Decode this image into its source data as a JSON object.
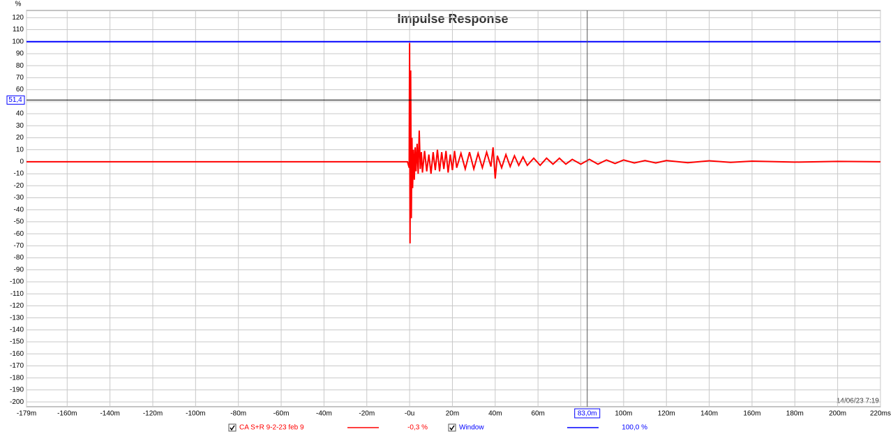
{
  "chart_data": {
    "type": "line",
    "title": "Impulse Response",
    "y_unit": "%",
    "timestamp": "14/06/23 7:19",
    "xlim": [
      -179,
      220
    ],
    "ylim": [
      -204,
      126
    ],
    "grid": true,
    "xticks": [
      {
        "value": -179,
        "label": "-179m"
      },
      {
        "value": -160,
        "label": "-160m"
      },
      {
        "value": -140,
        "label": "-140m"
      },
      {
        "value": -120,
        "label": "-120m"
      },
      {
        "value": -100,
        "label": "-100m"
      },
      {
        "value": -80,
        "label": "-80m"
      },
      {
        "value": -60,
        "label": "-60m"
      },
      {
        "value": -40,
        "label": "-40m"
      },
      {
        "value": -20,
        "label": "-20m"
      },
      {
        "value": 0,
        "label": "-0u"
      },
      {
        "value": 20,
        "label": "20m"
      },
      {
        "value": 40,
        "label": "40m"
      },
      {
        "value": 60,
        "label": "60m"
      },
      {
        "value": 80,
        "label": "80m"
      },
      {
        "value": 100,
        "label": "100m"
      },
      {
        "value": 120,
        "label": "120m"
      },
      {
        "value": 140,
        "label": "140m"
      },
      {
        "value": 160,
        "label": "160m"
      },
      {
        "value": 180,
        "label": "180m"
      },
      {
        "value": 200,
        "label": "200m"
      },
      {
        "value": 220,
        "label": "220ms"
      }
    ],
    "yticks": [
      120,
      110,
      100,
      90,
      80,
      70,
      60,
      50,
      40,
      30,
      20,
      10,
      0,
      -10,
      -20,
      -30,
      -40,
      -50,
      -60,
      -70,
      -80,
      -90,
      -100,
      -110,
      -120,
      -130,
      -140,
      -150,
      -160,
      -170,
      -180,
      -190,
      -200
    ],
    "cursor_y": {
      "value": 51.4,
      "label": "51,4"
    },
    "cursor_x": {
      "value": 83.0,
      "label": "83,0m"
    },
    "series": [
      {
        "name": "CA S+R 9-2-23 feb 9",
        "color": "#ff0000",
        "readout": {
          "value": -0.3,
          "label": "-0,3 %"
        },
        "x": [
          -179,
          -1,
          -0.2,
          0,
          0.2,
          0.5,
          0.8,
          1.1,
          1.4,
          1.8,
          2.2,
          2.6,
          3,
          3.5,
          4,
          4.5,
          5,
          5.5,
          6,
          7,
          8,
          9,
          10,
          11,
          12,
          13,
          14,
          15,
          16,
          17,
          18,
          19,
          20,
          21,
          22,
          24,
          26,
          28,
          30,
          32,
          34,
          36,
          38,
          39,
          40,
          41,
          43,
          45,
          47,
          49,
          51,
          53,
          55,
          58,
          61,
          64,
          67,
          70,
          73,
          76,
          80,
          84,
          88,
          92,
          96,
          100,
          105,
          110,
          115,
          120,
          130,
          140,
          150,
          160,
          180,
          200,
          220
        ],
        "values": [
          0,
          0,
          -5,
          99,
          -68,
          76,
          -47,
          20,
          -22,
          10,
          -15,
          12,
          -8,
          15,
          -10,
          26,
          -6,
          8,
          -9,
          9,
          -8,
          6,
          -10,
          8,
          -7,
          10,
          -8,
          8,
          -6,
          9,
          -9,
          6,
          -7,
          9,
          -5,
          7,
          -6,
          8,
          -6,
          7,
          -5,
          8,
          -4,
          12,
          -14,
          5,
          -5,
          6,
          -4,
          5,
          -3,
          4,
          -3,
          3,
          -3,
          3,
          -2,
          3,
          -2,
          2,
          -2,
          2,
          -2,
          1.5,
          -1.5,
          1.5,
          -1,
          1,
          -1,
          1,
          -0.8,
          0.8,
          -0.5,
          0.5,
          -0.3,
          0.3,
          0
        ]
      },
      {
        "name": "Window",
        "color": "#0000ff",
        "readout": {
          "value": 100.0,
          "label": "100,0 %"
        },
        "x": [
          -179,
          220
        ],
        "values": [
          100,
          100
        ]
      }
    ]
  }
}
